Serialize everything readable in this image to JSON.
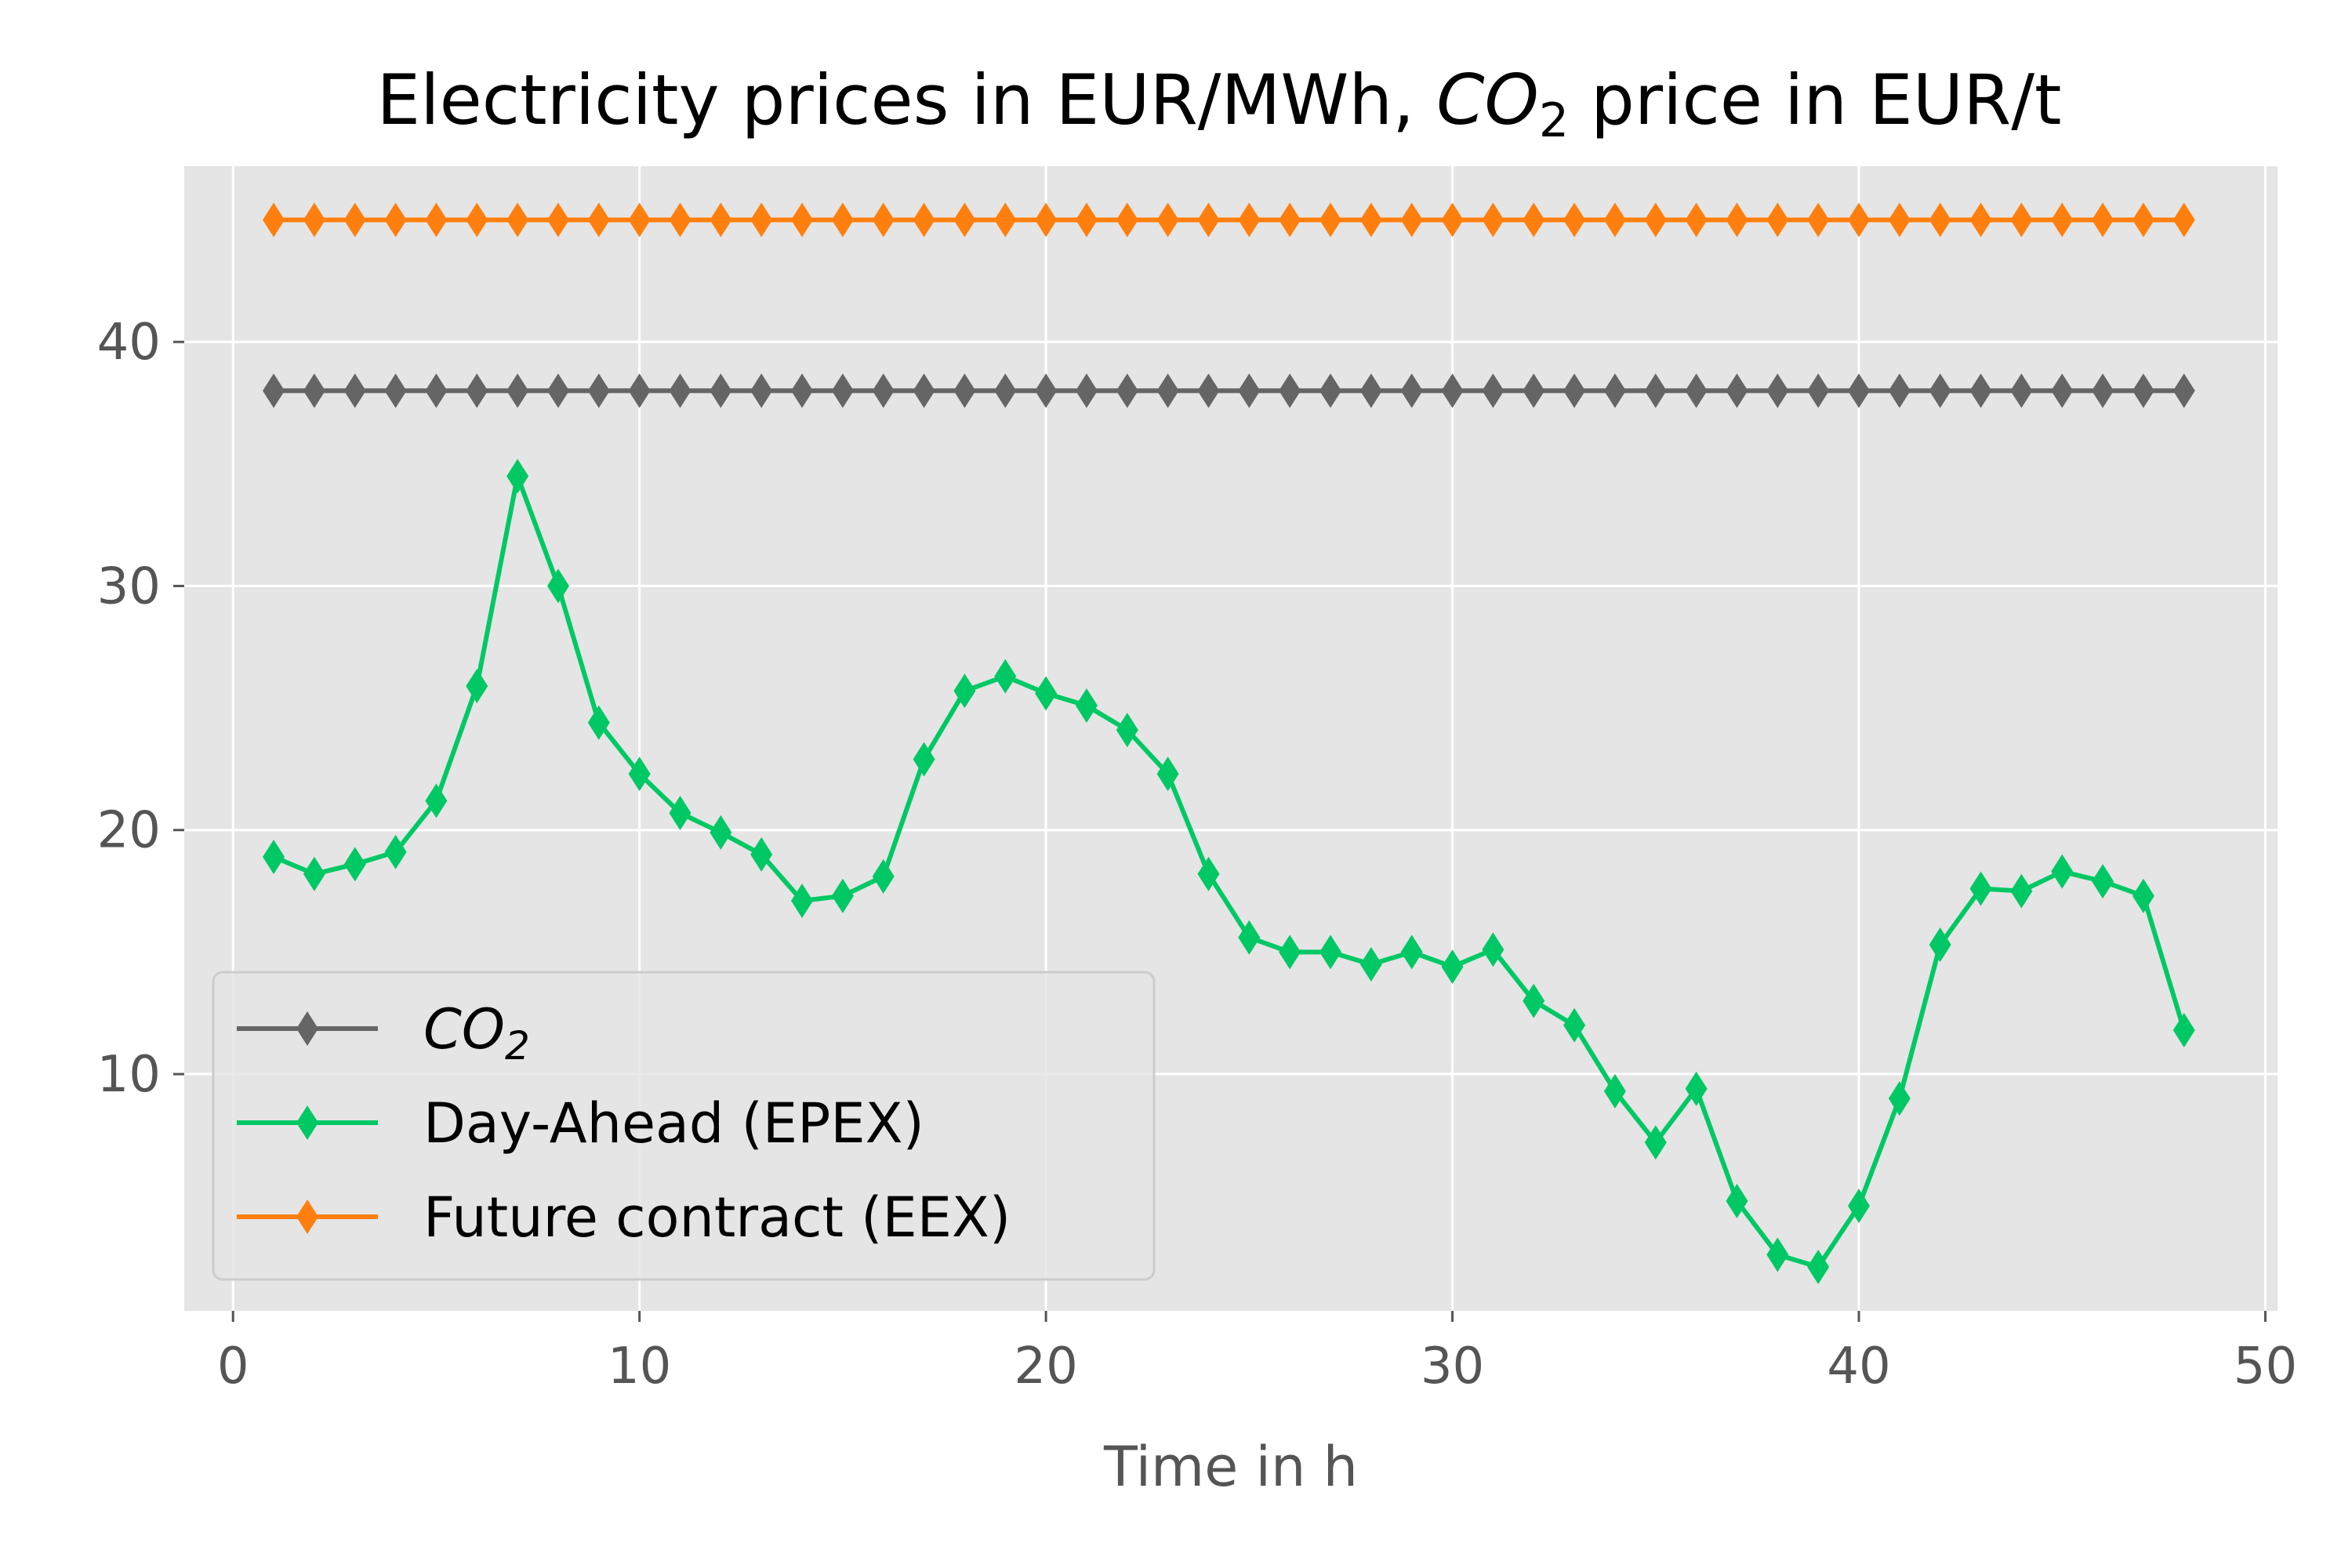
{
  "chart_data": {
    "type": "line",
    "title": {
      "prefix": "Electricity prices in EUR/MWh, ",
      "co2_base": "CO",
      "co2_sub": "2",
      "suffix": " price in EUR/t"
    },
    "xlabel": "Time in h",
    "ylabel": "",
    "xlim": [
      -1.2,
      50.3
    ],
    "ylim": [
      0.3,
      47.2
    ],
    "xticks": [
      0,
      10,
      20,
      30,
      40,
      50
    ],
    "yticks": [
      10,
      20,
      30,
      40
    ],
    "grid": true,
    "legend_position": "lower-left",
    "background": "#e5e5e5",
    "grid_color": "#ffffff",
    "marker": "thin-diamond",
    "x": [
      1,
      2,
      3,
      4,
      5,
      6,
      7,
      8,
      9,
      10,
      11,
      12,
      13,
      14,
      15,
      16,
      17,
      18,
      19,
      20,
      21,
      22,
      23,
      24,
      25,
      26,
      27,
      28,
      29,
      30,
      31,
      32,
      33,
      34,
      35,
      36,
      37,
      38,
      39,
      40,
      41,
      42,
      43,
      44,
      45,
      46,
      47,
      48
    ],
    "series": [
      {
        "key": "co2",
        "name": "CO",
        "name_sub": "2",
        "color": "#656565",
        "values": [
          38,
          38,
          38,
          38,
          38,
          38,
          38,
          38,
          38,
          38,
          38,
          38,
          38,
          38,
          38,
          38,
          38,
          38,
          38,
          38,
          38,
          38,
          38,
          38,
          38,
          38,
          38,
          38,
          38,
          38,
          38,
          38,
          38,
          38,
          38,
          38,
          38,
          38,
          38,
          38,
          38,
          38,
          38,
          38,
          38,
          38,
          38,
          38
        ]
      },
      {
        "key": "day_ahead",
        "name": "Day-Ahead (EPEX)",
        "color": "#00c864",
        "values": [
          18.9,
          18.2,
          18.6,
          19.1,
          21.2,
          25.9,
          34.5,
          30.0,
          24.4,
          22.3,
          20.7,
          19.9,
          19.0,
          17.1,
          17.3,
          18.1,
          22.9,
          25.7,
          26.3,
          25.6,
          25.1,
          24.1,
          22.3,
          18.2,
          15.6,
          15.0,
          15.0,
          14.5,
          15.0,
          14.4,
          15.1,
          13.0,
          12.0,
          9.3,
          7.2,
          9.4,
          4.8,
          2.6,
          2.1,
          4.6,
          9.0,
          15.3,
          17.6,
          17.5,
          18.3,
          17.9,
          17.3,
          11.8
        ]
      },
      {
        "key": "future",
        "name": "Future contract (EEX)",
        "color": "#ff7f0e",
        "values": [
          45,
          45,
          45,
          45,
          45,
          45,
          45,
          45,
          45,
          45,
          45,
          45,
          45,
          45,
          45,
          45,
          45,
          45,
          45,
          45,
          45,
          45,
          45,
          45,
          45,
          45,
          45,
          45,
          45,
          45,
          45,
          45,
          45,
          45,
          45,
          45,
          45,
          45,
          45,
          45,
          45,
          45,
          45,
          45,
          45,
          45,
          45,
          45
        ]
      }
    ]
  }
}
